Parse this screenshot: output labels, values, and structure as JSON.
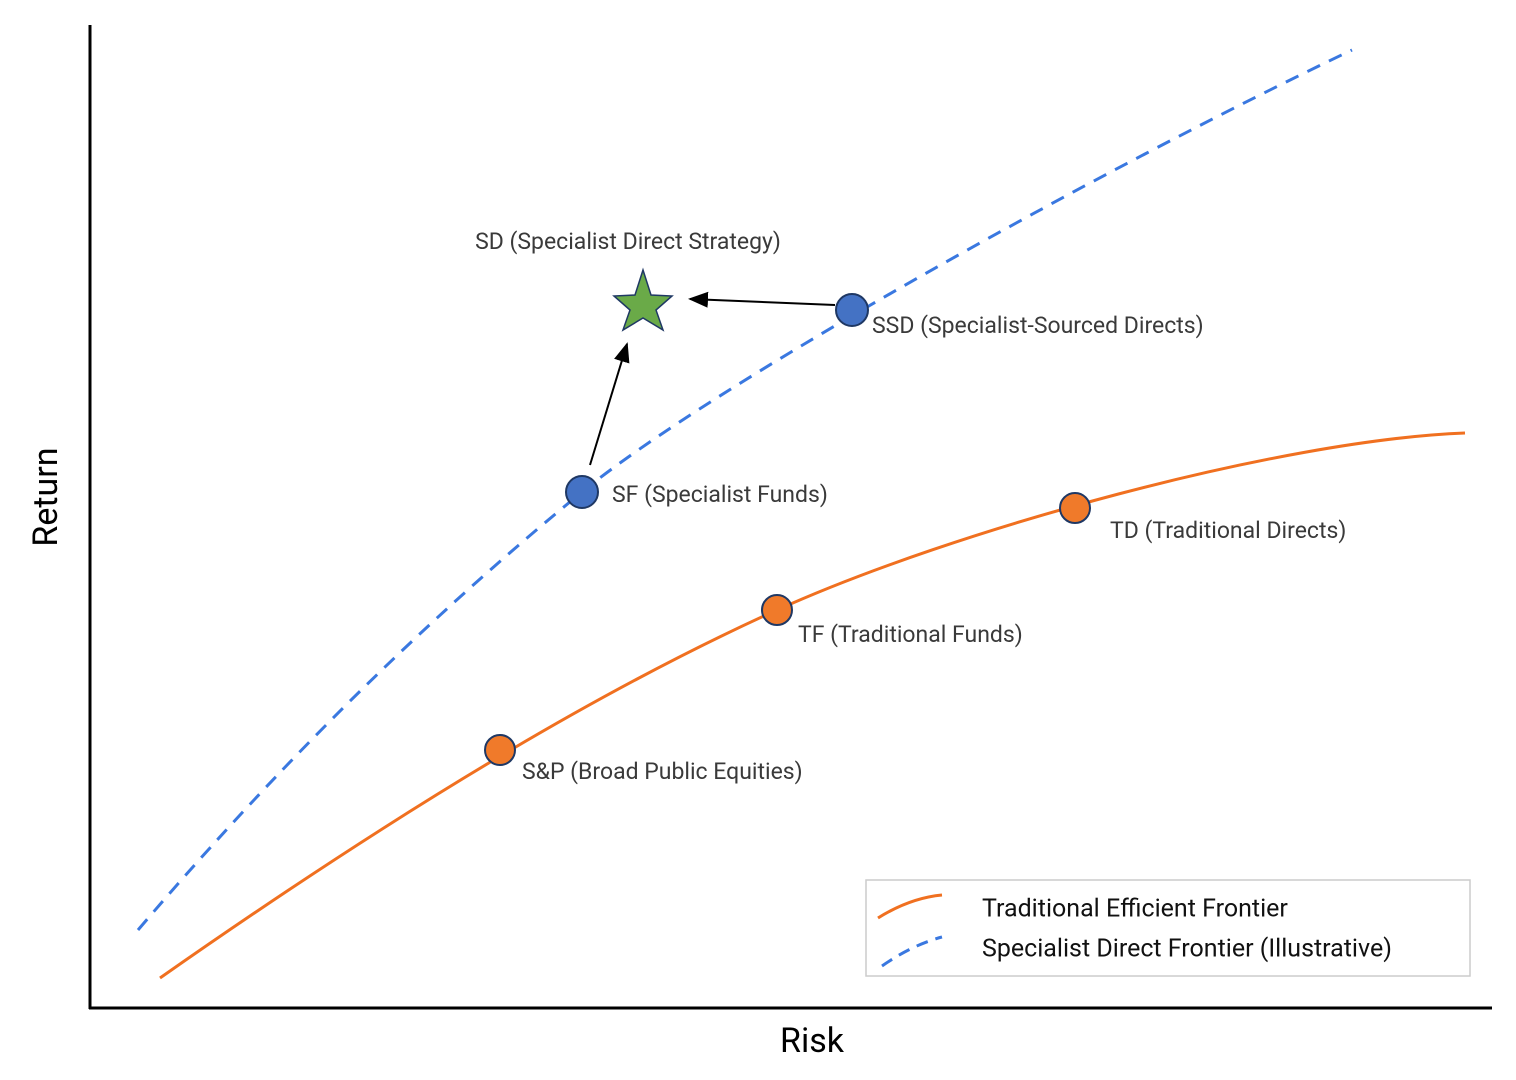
{
  "axes": {
    "x_label": "Risk",
    "y_label": "Return"
  },
  "points": [
    {
      "label": "S&P (Broad Public Equities)"
    },
    {
      "label": "TF (Traditional Funds)"
    },
    {
      "label": "TD (Traditional Directs)"
    },
    {
      "label": "SF (Specialist Funds)"
    },
    {
      "label": "SSD (Specialist-Sourced Directs)"
    },
    {
      "label": "SD (Specialist Direct Strategy)"
    }
  ],
  "legend": [
    "Traditional Efficient Frontier",
    "Specialist Direct Frontier (Illustrative)"
  ]
}
